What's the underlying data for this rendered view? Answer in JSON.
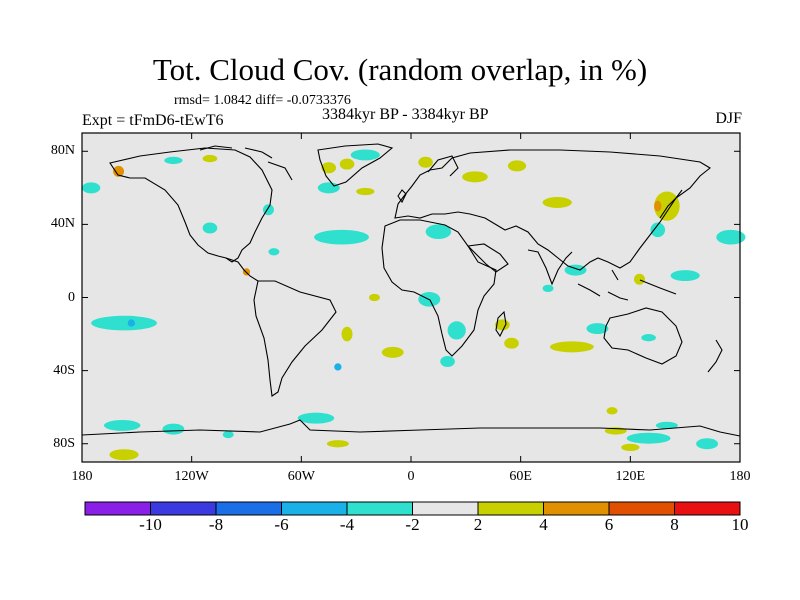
{
  "title": "Tot. Cloud Cov. (random overlap, in %)",
  "stats": "rmsd= 1.0842  diff= -0.0733376",
  "experiment": "Expt = tFmD6-tEwT6",
  "period": "3384kyr BP - 3384kyr BP",
  "season": "DJF",
  "map": {
    "lon_range": [
      -180,
      180
    ],
    "lat_range": [
      -90,
      90
    ],
    "x_ticks": [
      {
        "lon": -180,
        "label": "180"
      },
      {
        "lon": -120,
        "label": "120W"
      },
      {
        "lon": -60,
        "label": "60W"
      },
      {
        "lon": 0,
        "label": "0"
      },
      {
        "lon": 60,
        "label": "60E"
      },
      {
        "lon": 120,
        "label": "120E"
      },
      {
        "lon": 180,
        "label": "180"
      }
    ],
    "y_ticks": [
      {
        "lat": 80,
        "label": "80N"
      },
      {
        "lat": 40,
        "label": "40N"
      },
      {
        "lat": 0,
        "label": "0"
      },
      {
        "lat": -40,
        "label": "40S"
      },
      {
        "lat": -80,
        "label": "80S"
      }
    ],
    "background_color": "#e6e6e6",
    "anomaly_regions": [
      {
        "lon": -157,
        "lat": -14,
        "rx": 18,
        "ry": 4,
        "color": "#2fe0cf"
      },
      {
        "lon": -158,
        "lat": -70,
        "rx": 10,
        "ry": 3,
        "color": "#2fe0cf"
      },
      {
        "lon": -130,
        "lat": -72,
        "rx": 6,
        "ry": 3,
        "color": "#2fe0cf"
      },
      {
        "lon": -175,
        "lat": 60,
        "rx": 5,
        "ry": 3,
        "color": "#2fe0cf"
      },
      {
        "lon": -110,
        "lat": 38,
        "rx": 4,
        "ry": 3,
        "color": "#2fe0cf"
      },
      {
        "lon": -130,
        "lat": 75,
        "rx": 5,
        "ry": 2,
        "color": "#2fe0cf"
      },
      {
        "lon": -38,
        "lat": 33,
        "rx": 15,
        "ry": 4,
        "color": "#2fe0cf"
      },
      {
        "lon": -110,
        "lat": 76,
        "rx": 4,
        "ry": 2,
        "color": "#c8d000"
      },
      {
        "lon": -75,
        "lat": 25,
        "rx": 3,
        "ry": 2,
        "color": "#2fe0cf"
      },
      {
        "lon": -78,
        "lat": 48,
        "rx": 3,
        "ry": 3,
        "color": "#2fe0cf"
      },
      {
        "lon": -45,
        "lat": 60,
        "rx": 6,
        "ry": 3,
        "color": "#2fe0cf"
      },
      {
        "lon": -25,
        "lat": 58,
        "rx": 5,
        "ry": 2,
        "color": "#c8d000"
      },
      {
        "lon": -20,
        "lat": 0,
        "rx": 3,
        "ry": 2,
        "color": "#c8d000"
      },
      {
        "lon": -10,
        "lat": -30,
        "rx": 6,
        "ry": 3,
        "color": "#c8d000"
      },
      {
        "lon": -35,
        "lat": -20,
        "rx": 3,
        "ry": 4,
        "color": "#c8d000"
      },
      {
        "lon": -40,
        "lat": -80,
        "rx": 6,
        "ry": 2,
        "color": "#c8d000"
      },
      {
        "lon": -52,
        "lat": -66,
        "rx": 10,
        "ry": 3,
        "color": "#2fe0cf"
      },
      {
        "lon": -100,
        "lat": -75,
        "rx": 3,
        "ry": 2,
        "color": "#2fe0cf"
      },
      {
        "lon": -45,
        "lat": 71,
        "rx": 4,
        "ry": 3,
        "color": "#c8d000"
      },
      {
        "lon": -35,
        "lat": 73,
        "rx": 4,
        "ry": 3,
        "color": "#c8d000"
      },
      {
        "lon": -25,
        "lat": 78,
        "rx": 8,
        "ry": 3,
        "color": "#2fe0cf"
      },
      {
        "lon": 15,
        "lat": 36,
        "rx": 7,
        "ry": 4,
        "color": "#2fe0cf"
      },
      {
        "lon": 35,
        "lat": 66,
        "rx": 7,
        "ry": 3,
        "color": "#c8d000"
      },
      {
        "lon": 8,
        "lat": 74,
        "rx": 4,
        "ry": 3,
        "color": "#c8d000"
      },
      {
        "lon": 80,
        "lat": 52,
        "rx": 8,
        "ry": 3,
        "color": "#c8d000"
      },
      {
        "lon": 58,
        "lat": 72,
        "rx": 5,
        "ry": 3,
        "color": "#c8d000"
      },
      {
        "lon": 140,
        "lat": 50,
        "rx": 7,
        "ry": 8,
        "color": "#c8d000"
      },
      {
        "lon": 135,
        "lat": 37,
        "rx": 4,
        "ry": 4,
        "color": "#2fe0cf"
      },
      {
        "lon": 175,
        "lat": 33,
        "rx": 8,
        "ry": 4,
        "color": "#2fe0cf"
      },
      {
        "lon": 150,
        "lat": 12,
        "rx": 8,
        "ry": 3,
        "color": "#2fe0cf"
      },
      {
        "lon": 125,
        "lat": 10,
        "rx": 3,
        "ry": 3,
        "color": "#c8d000"
      },
      {
        "lon": 90,
        "lat": 15,
        "rx": 6,
        "ry": 3,
        "color": "#2fe0cf"
      },
      {
        "lon": 75,
        "lat": 5,
        "rx": 3,
        "ry": 2,
        "color": "#2fe0cf"
      },
      {
        "lon": 10,
        "lat": -1,
        "rx": 6,
        "ry": 4,
        "color": "#2fe0cf"
      },
      {
        "lon": 25,
        "lat": -18,
        "rx": 5,
        "ry": 5,
        "color": "#2fe0cf"
      },
      {
        "lon": 20,
        "lat": -35,
        "rx": 4,
        "ry": 3,
        "color": "#2fe0cf"
      },
      {
        "lon": 50,
        "lat": -15,
        "rx": 4,
        "ry": 3,
        "color": "#c8d000"
      },
      {
        "lon": 55,
        "lat": -25,
        "rx": 4,
        "ry": 3,
        "color": "#c8d000"
      },
      {
        "lon": 88,
        "lat": -27,
        "rx": 12,
        "ry": 3,
        "color": "#c8d000"
      },
      {
        "lon": 102,
        "lat": -17,
        "rx": 6,
        "ry": 3,
        "color": "#2fe0cf"
      },
      {
        "lon": 130,
        "lat": -22,
        "rx": 4,
        "ry": 2,
        "color": "#2fe0cf"
      },
      {
        "lon": 130,
        "lat": -77,
        "rx": 12,
        "ry": 3,
        "color": "#2fe0cf"
      },
      {
        "lon": 162,
        "lat": -80,
        "rx": 6,
        "ry": 3,
        "color": "#2fe0cf"
      },
      {
        "lon": 140,
        "lat": -70,
        "rx": 6,
        "ry": 2,
        "color": "#2fe0cf"
      },
      {
        "lon": 112,
        "lat": -73,
        "rx": 6,
        "ry": 2,
        "color": "#c8d000"
      },
      {
        "lon": 120,
        "lat": -82,
        "rx": 5,
        "ry": 2,
        "color": "#c8d000"
      },
      {
        "lon": 110,
        "lat": -62,
        "rx": 3,
        "ry": 2,
        "color": "#c8d000"
      },
      {
        "lon": -153,
        "lat": -14,
        "rx": 2,
        "ry": 2,
        "color": "#1ab0e8"
      },
      {
        "lon": -40,
        "lat": -38,
        "rx": 2,
        "ry": 2,
        "color": "#1ab0e8"
      },
      {
        "lon": -160,
        "lat": 69,
        "rx": 3,
        "ry": 3,
        "color": "#e09000"
      },
      {
        "lon": -90,
        "lat": 14,
        "rx": 2,
        "ry": 2,
        "color": "#e09000"
      },
      {
        "lon": 135,
        "lat": 50,
        "rx": 2,
        "ry": 3,
        "color": "#e09000"
      },
      {
        "lon": -157,
        "lat": -86,
        "rx": 8,
        "ry": 3,
        "color": "#c8d000"
      }
    ]
  },
  "colorbar": {
    "labels": [
      "-10",
      "-8",
      "-6",
      "-4",
      "-2",
      "2",
      "4",
      "6",
      "8",
      "10"
    ],
    "colors": [
      "#8a1fe8",
      "#3a3ae0",
      "#1a6ee8",
      "#1ab0e8",
      "#2fe0cf",
      "#e6e6e6",
      "#c8d000",
      "#e09000",
      "#e05000",
      "#e81010"
    ]
  }
}
